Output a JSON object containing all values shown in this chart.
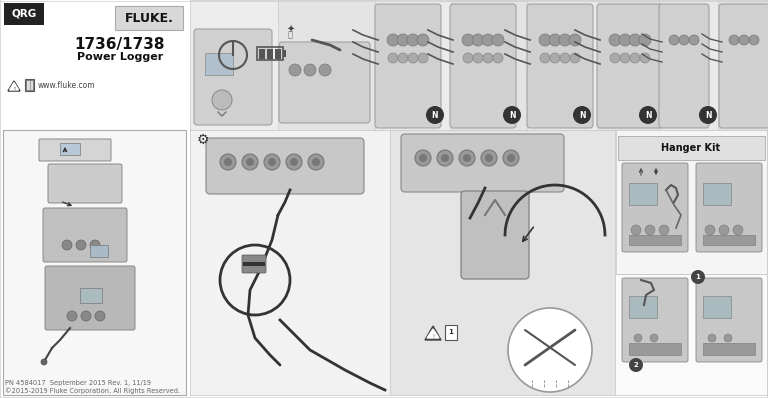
{
  "title": "1736/1738",
  "subtitle": "Power Logger",
  "brand": "FLUKE.",
  "qrg_label": "QRG",
  "website": "www.fluke.com",
  "footer_line1": "PN 4584017  September 2015 Rev. 1, 11/19",
  "footer_line2": "©2015-2019 Fluke Corporation. All Rights Reserved.",
  "hanger_kit_label": "Hanger Kit",
  "bg_color": "#ffffff",
  "panel_border": "#cccccc",
  "qrg_bg": "#222222",
  "fluke_bg": "#d8d8d8",
  "top_strip_bg": "#e8e8e8",
  "left_panel_bg": "#f7f7f7",
  "mid_left_bg": "#f2f2f2",
  "mid_right_bg": "#e5e5e5",
  "right_top_bg": "#f5f5f5",
  "right_bot_bg": "#fafafa",
  "hanger_header_bg": "#e0e0e0",
  "device_color": "#c8c8c8",
  "device_dark": "#aaaaaa",
  "cable_color": "#333333",
  "text_dark": "#111111",
  "text_gray": "#555555",
  "text_light": "#888888"
}
